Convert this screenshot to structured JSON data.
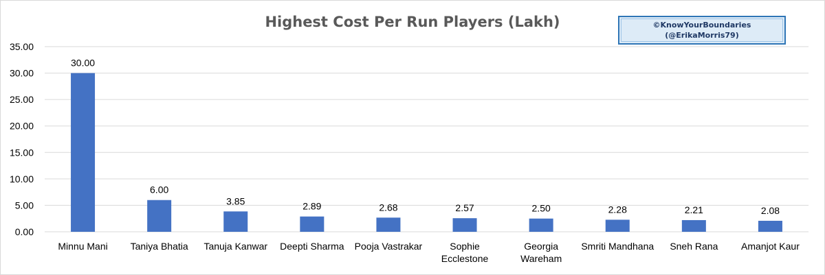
{
  "chart_data": {
    "type": "bar",
    "title": "Highest Cost Per Run Players (Lakh)",
    "categories": [
      [
        "Minnu Mani"
      ],
      [
        "Taniya Bhatia"
      ],
      [
        "Tanuja Kanwar"
      ],
      [
        "Deepti Sharma"
      ],
      [
        "Pooja Vastrakar"
      ],
      [
        "Sophie",
        "Ecclestone"
      ],
      [
        "Georgia",
        "Wareham"
      ],
      [
        "Smriti Mandhana"
      ],
      [
        "Sneh Rana"
      ],
      [
        "Amanjot Kaur"
      ]
    ],
    "values": [
      30.0,
      6.0,
      3.85,
      2.89,
      2.68,
      2.57,
      2.5,
      2.28,
      2.21,
      2.08
    ],
    "data_labels": [
      "30.00",
      "6.00",
      "3.85",
      "2.89",
      "2.68",
      "2.57",
      "2.50",
      "2.28",
      "2.21",
      "2.08"
    ],
    "yticks": [
      "0.00",
      "5.00",
      "10.00",
      "15.00",
      "20.00",
      "25.00",
      "30.00",
      "35.00"
    ],
    "ylim": [
      0,
      35
    ],
    "xlabel": "",
    "ylabel": "",
    "grid": true,
    "legend": "none",
    "bar_color": "#4472c4"
  },
  "watermark": {
    "line1": "©KnowYourBoundaries",
    "line2": "(@ErikaMorris79)"
  }
}
